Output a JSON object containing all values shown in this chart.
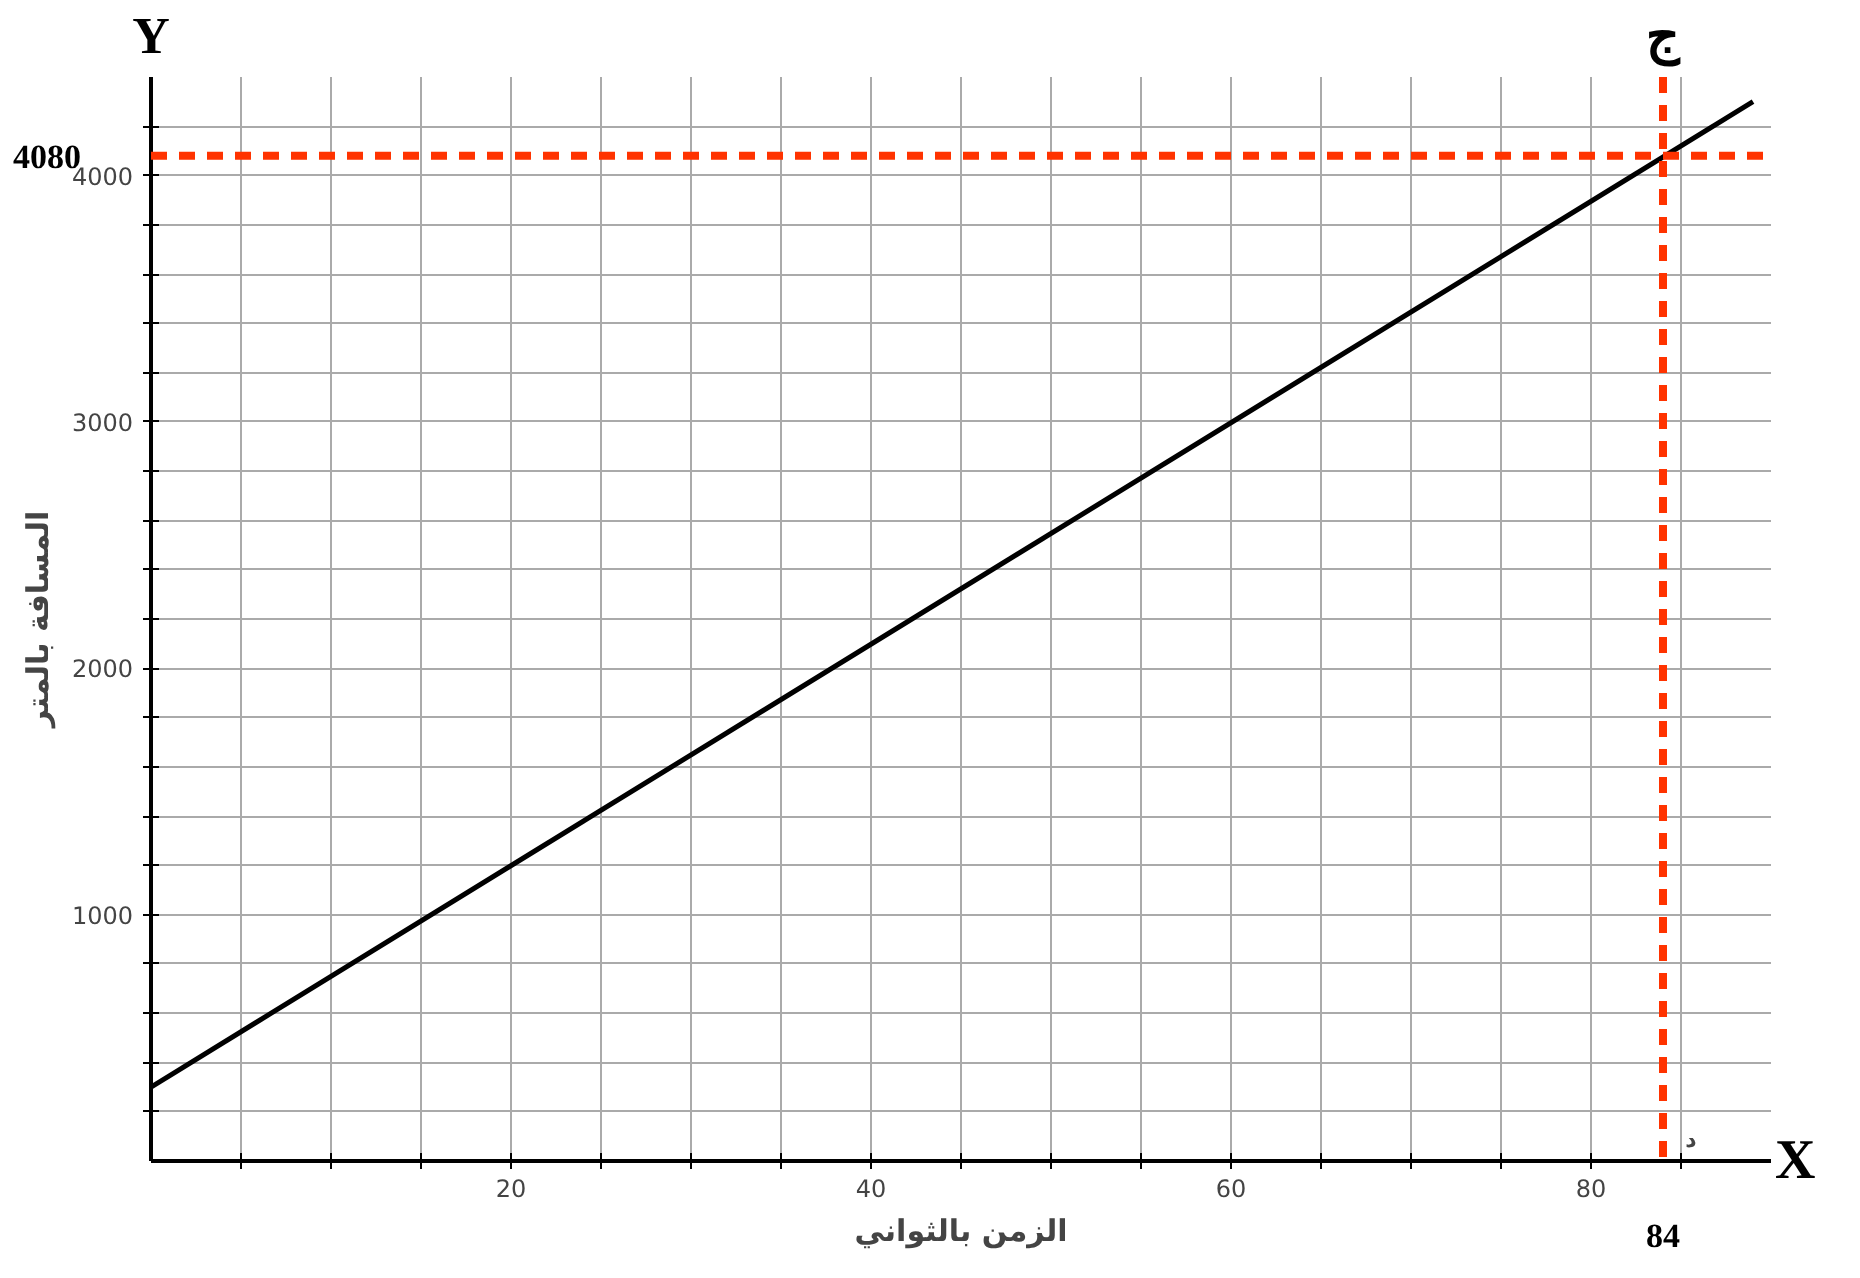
{
  "chart_data": {
    "type": "line",
    "xlabel": "الزمن بالثواني",
    "ylabel": "المسافة بالمتر",
    "x": [
      0,
      89
    ],
    "series": [
      {
        "color": "#000000",
        "values": [
          300,
          4300
        ]
      }
    ],
    "xlim": [
      0,
      90
    ],
    "ylim": [
      0,
      4400
    ],
    "xticks": [
      {
        "value": 5,
        "label": null
      },
      {
        "value": 10,
        "label": null
      },
      {
        "value": 15,
        "label": null
      },
      20,
      {
        "value": 25,
        "label": null
      },
      {
        "value": 30,
        "label": null
      },
      {
        "value": 35,
        "label": null
      },
      40,
      {
        "value": 45,
        "label": null
      },
      {
        "value": 50,
        "label": null
      },
      {
        "value": 55,
        "label": null
      },
      60,
      {
        "value": 65,
        "label": null
      },
      {
        "value": 70,
        "label": null
      },
      {
        "value": 75,
        "label": null
      },
      80,
      {
        "value": 85,
        "label": null
      }
    ],
    "yticks": [
      {
        "value": 200,
        "label": null
      },
      {
        "value": 400,
        "label": null
      },
      {
        "value": 600,
        "label": null
      },
      {
        "value": 800,
        "label": null
      },
      1000,
      {
        "value": 1200,
        "label": null
      },
      {
        "value": 1400,
        "label": null
      },
      {
        "value": 1600,
        "label": null
      },
      {
        "value": 1800,
        "label": null
      },
      2000,
      {
        "value": 2200,
        "label": null
      },
      {
        "value": 2400,
        "label": null
      },
      {
        "value": 2600,
        "label": null
      },
      {
        "value": 2800,
        "label": null
      },
      3000,
      {
        "value": 3200,
        "label": null
      },
      {
        "value": 3400,
        "label": null
      },
      {
        "value": 3600,
        "label": null
      },
      {
        "value": 3800,
        "label": null
      },
      4000,
      {
        "value": 4200,
        "label": null
      }
    ],
    "grid": true,
    "marker": "none",
    "line_style": "solid",
    "ref_lines": [
      {
        "axis": "y",
        "value": 4080,
        "label": "4080",
        "color": "#ff3300",
        "line_style": "dashed"
      },
      {
        "axis": "x",
        "value": 84,
        "label": "84",
        "color": "#ff3300",
        "line_style": "dashed"
      }
    ],
    "annotations": [
      "Y",
      "X",
      "ج",
      "د"
    ]
  }
}
